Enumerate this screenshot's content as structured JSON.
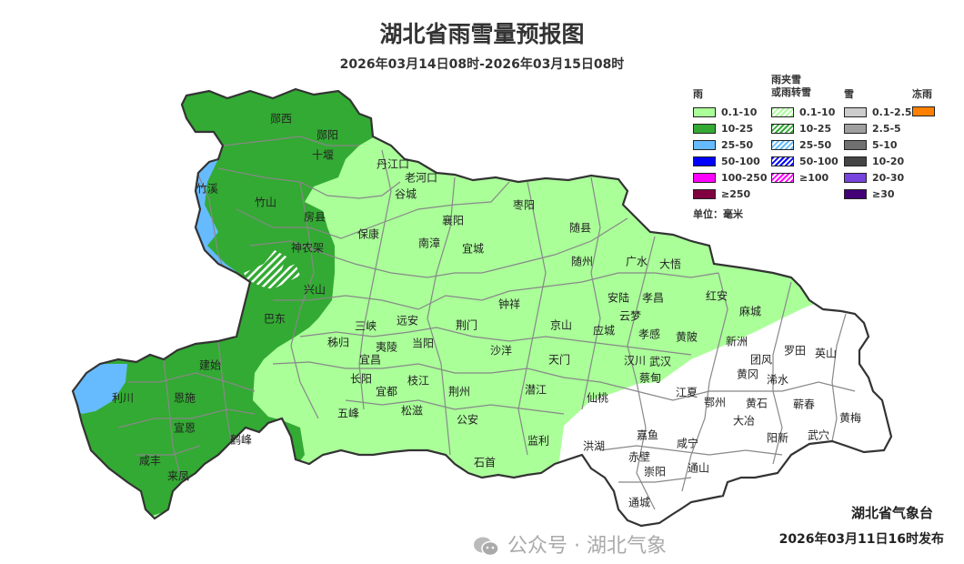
{
  "header": {
    "title": "湖北省雨雪量预报图",
    "subtitle": "2026年03月14日08时-2026年03月15日08时"
  },
  "legend": {
    "rain": {
      "title": "雨",
      "items": [
        {
          "label": "0.1-10",
          "color": "#aaff99"
        },
        {
          "label": "10-25",
          "color": "#33aa33"
        },
        {
          "label": "25-50",
          "color": "#66bbff"
        },
        {
          "label": "50-100",
          "color": "#0000ff"
        },
        {
          "label": "100-250",
          "color": "#ff00ff"
        },
        {
          "label": "≥250",
          "color": "#800040"
        }
      ]
    },
    "sleet": {
      "title_line1": "雨夹雪",
      "title_line2": "或雨转雪",
      "items": [
        {
          "label": "0.1-10",
          "color": "#aaff99"
        },
        {
          "label": "10-25",
          "color": "#33aa33"
        },
        {
          "label": "25-50",
          "color": "#66bbff"
        },
        {
          "label": "50-100",
          "color": "#0000ff"
        },
        {
          "label": "≥100",
          "color": "#ff00ff"
        }
      ]
    },
    "snow": {
      "title": "雪",
      "items": [
        {
          "label": "0.1-2.5",
          "color": "#cccccc"
        },
        {
          "label": "2.5-5",
          "color": "#a0a0a0"
        },
        {
          "label": "5-10",
          "color": "#707070"
        },
        {
          "label": "10-20",
          "color": "#444444"
        },
        {
          "label": "20-30",
          "color": "#7744dd"
        },
        {
          "label": "≥30",
          "color": "#440077"
        }
      ]
    },
    "freezing_rain": {
      "title": "冻雨",
      "items": [
        {
          "label": "",
          "color": "#ff8000"
        }
      ]
    },
    "unit": "单位：毫米"
  },
  "map": {
    "counties": [
      "郧西",
      "郧阳",
      "十堰",
      "竹溪",
      "竹山",
      "房县",
      "神农架",
      "兴山",
      "巴东",
      "丹江口",
      "老河口",
      "谷城",
      "保康",
      "南漳",
      "襄阳",
      "宜城",
      "枣阳",
      "随县",
      "随州",
      "广水",
      "大悟",
      "红安",
      "麻城",
      "安陆",
      "孝昌",
      "云梦",
      "应城",
      "孝感",
      "京山",
      "钟祥",
      "荆门",
      "沙洋",
      "天门",
      "汉川",
      "武汉",
      "蔡甸",
      "黄陂",
      "新洲",
      "罗田",
      "英山",
      "团风",
      "黄冈",
      "浠水",
      "鄂州",
      "黄石",
      "蕲春",
      "大冶",
      "黄梅",
      "武穴",
      "阳新",
      "江夏",
      "嘉鱼",
      "咸宁",
      "赤壁",
      "崇阳",
      "通山",
      "通城",
      "洪湖",
      "仙桃",
      "潜江",
      "监利",
      "石首",
      "公安",
      "荆州",
      "松滋",
      "枝江",
      "宜都",
      "长阳",
      "五峰",
      "宜昌",
      "夷陵",
      "当阳",
      "远安",
      "三峡",
      "秭归",
      "利川",
      "恩施",
      "建始",
      "宣恩",
      "鹤峰",
      "咸丰",
      "来凤"
    ],
    "colors": {
      "none": "#ffffff",
      "light_rain": "#aaff99",
      "moderate_rain": "#33aa33",
      "heavy_rain": "#66bbff",
      "outline": "#333333",
      "county_border": "#888888"
    }
  },
  "footer": {
    "publisher": "湖北省气象台",
    "issued": "2026年03月11日16时发布",
    "watermark": "公众号 · 湖北气象"
  }
}
